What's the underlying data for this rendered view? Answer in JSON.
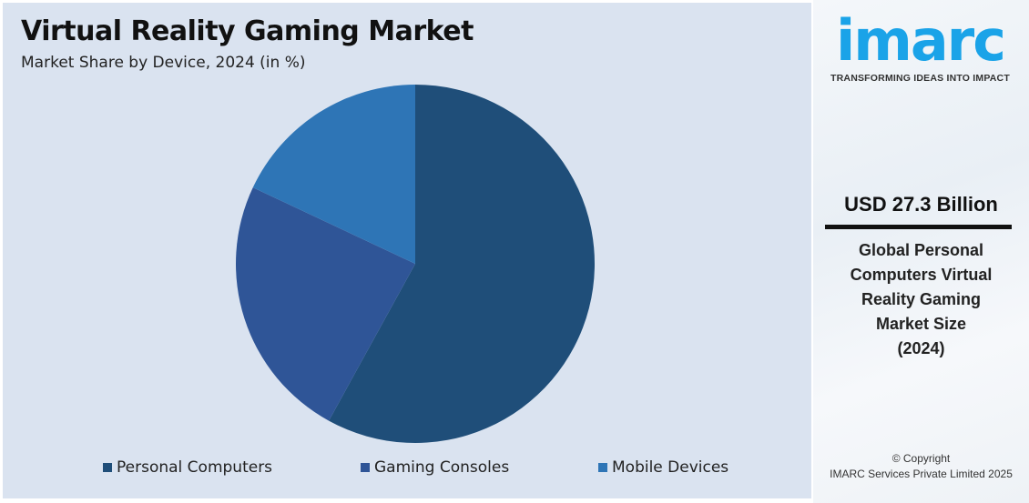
{
  "chart_data": {
    "type": "pie",
    "title": "Virtual Reality Gaming Market",
    "subtitle": "Market Share by Device, 2024 (in %)",
    "categories": [
      "Personal Computers",
      "Gaming Consoles",
      "Mobile Devices"
    ],
    "values": [
      58,
      24,
      18
    ],
    "colors": [
      "#1f4e79",
      "#2f5597",
      "#2e75b6"
    ],
    "legend_position": "bottom"
  },
  "side_panel": {
    "logo": "imarc",
    "tagline": "TRANSFORMING IDEAS INTO IMPACT",
    "value": "USD 27.3 Billion",
    "description_lines": [
      "Global Personal",
      "Computers Virtual",
      "Reality Gaming",
      "Market Size",
      "(2024)"
    ],
    "copyright": "© Copyright",
    "company": "IMARC Services Private Limited 2025",
    "brand_color": "#1aa3e8"
  }
}
